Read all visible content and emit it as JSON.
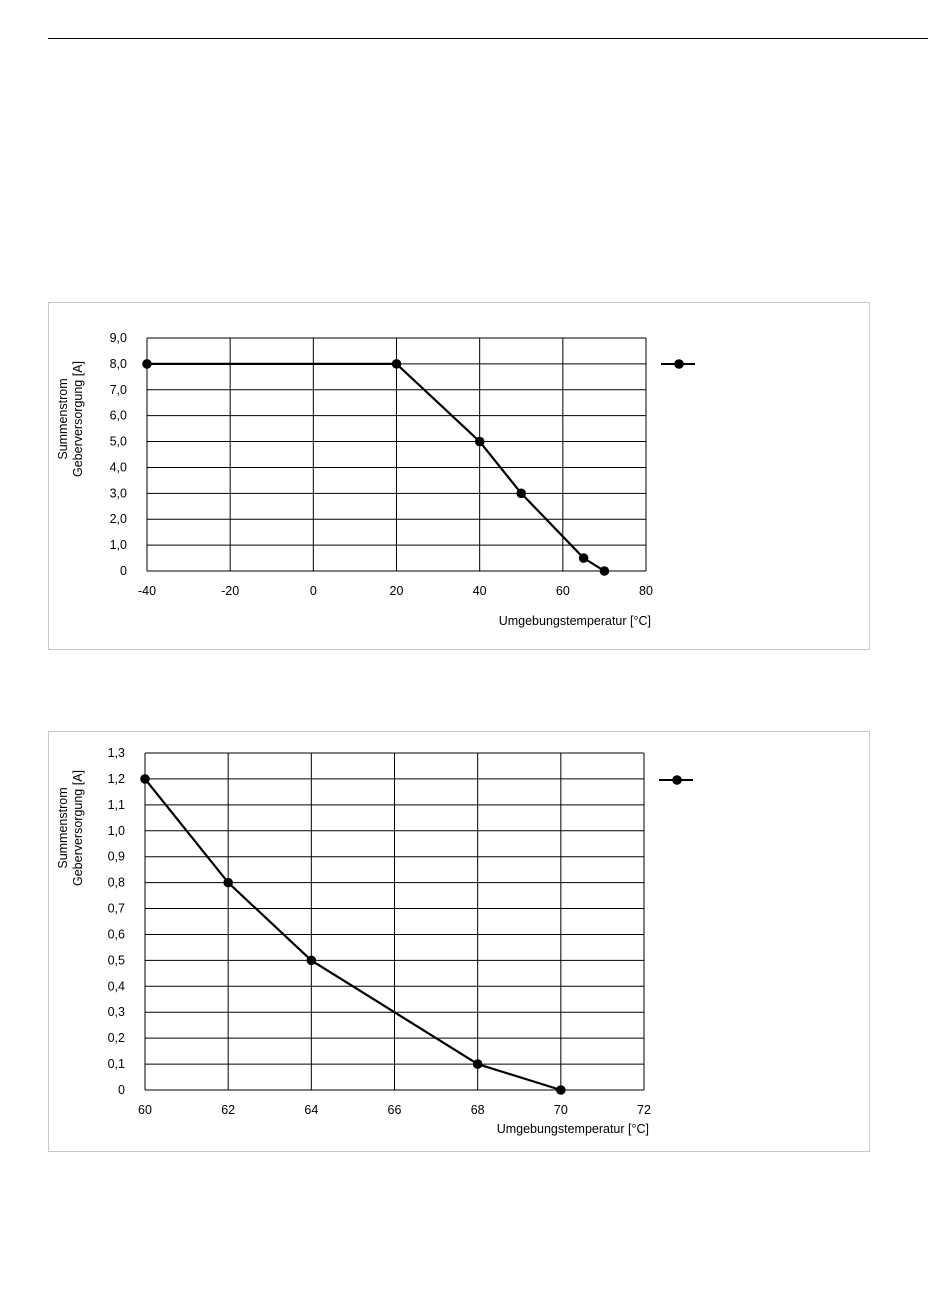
{
  "chart_data": [
    {
      "type": "line",
      "title": "",
      "xlabel": "Umgebungstemperatur [°C]",
      "ylabel_lines": [
        "Summenstrom",
        "Geberversorgung  [A]"
      ],
      "xlim": [
        -40,
        80
      ],
      "ylim": [
        0,
        9
      ],
      "x_ticks": [
        "-40",
        "-20",
        "0",
        "20",
        "40",
        "60",
        "80"
      ],
      "y_ticks": [
        "0",
        "1,0",
        "2,0",
        "3,0",
        "4,0",
        "5,0",
        "6,0",
        "7,0",
        "8,0",
        "9,0"
      ],
      "grid": true,
      "legend_placement": "right",
      "series": [
        {
          "x": [
            -40,
            20,
            40,
            50,
            65,
            70
          ],
          "y": [
            8,
            8,
            5,
            3,
            0.5,
            0
          ]
        }
      ]
    },
    {
      "type": "line",
      "title": "",
      "xlabel": "Umgebungstemperatur [°C]",
      "ylabel_lines": [
        "Summenstrom",
        "Geberversorgung  [A]"
      ],
      "xlim": [
        60,
        72
      ],
      "ylim": [
        0,
        1.3
      ],
      "x_ticks": [
        "60",
        "62",
        "64",
        "66",
        "68",
        "70",
        "72"
      ],
      "y_ticks": [
        "0",
        "0,1",
        "0,2",
        "0,3",
        "0,4",
        "0,5",
        "0,6",
        "0,7",
        "0,8",
        "0,9",
        "1,0",
        "1,1",
        "1,2",
        "1,3"
      ],
      "grid": true,
      "legend_placement": "right",
      "series": [
        {
          "x": [
            60,
            62,
            64,
            68,
            70
          ],
          "y": [
            1.2,
            0.8,
            0.5,
            0.1,
            0
          ]
        }
      ]
    }
  ]
}
